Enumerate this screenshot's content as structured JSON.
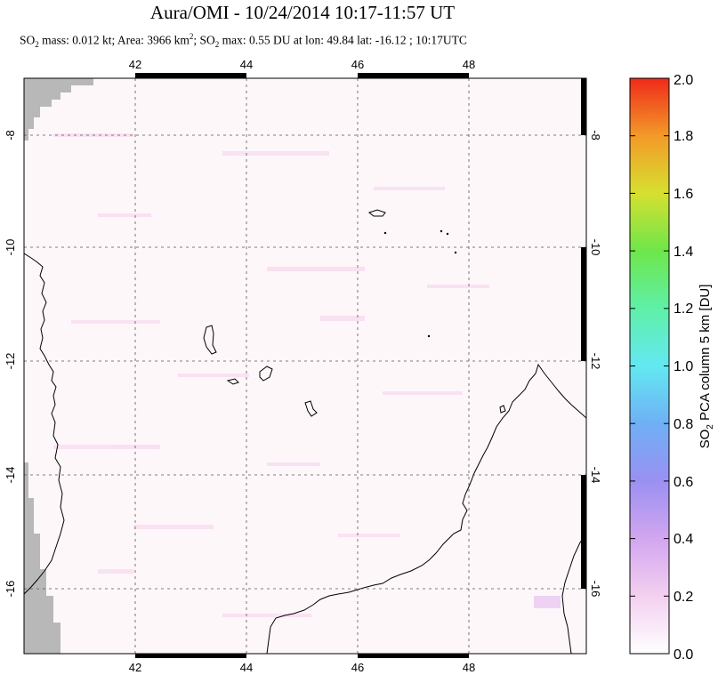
{
  "header": {
    "title": "Aura/OMI - 10/24/2014 10:17-11:57 UT",
    "subtitle_prefix": "SO",
    "subtitle_sub1": "2",
    "subtitle_part2": " mass: 0.012 kt; Area: 3966 km",
    "subtitle_sup": "2",
    "subtitle_part3": "; SO",
    "subtitle_sub2": "2",
    "subtitle_part4": " max: 0.55 DU at lon: 49.84 lat: -16.12 ; 10:17UTC"
  },
  "map": {
    "lon_ticks": [
      "42",
      "44",
      "46",
      "48"
    ],
    "lat_ticks": [
      "-8",
      "-10",
      "-12",
      "-14",
      "-16"
    ],
    "land_color": "#b8b8b8",
    "background_color": "#fdf7fa",
    "gridline_color": "#555555"
  },
  "colorbar": {
    "label_prefix": "SO",
    "label_sub": "2",
    "label_rest": " PCA column 5 km [DU]",
    "ticks": [
      "0.0",
      "0.2",
      "0.4",
      "0.6",
      "0.8",
      "1.0",
      "1.2",
      "1.4",
      "1.6",
      "1.8",
      "2.0"
    ]
  }
}
